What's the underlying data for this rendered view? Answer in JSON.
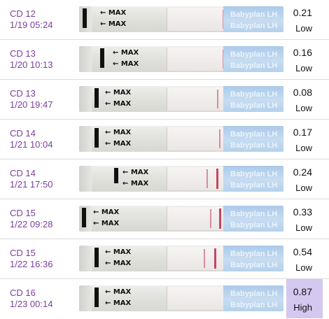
{
  "brand_text": "Babyplan LH",
  "max_label": "← MAX",
  "colors": {
    "day_text": "#7b3f9e",
    "high_highlight": "#d4c7f0",
    "control_line": "#c74660"
  },
  "entries": [
    {
      "cd": "CD 12",
      "datetime": "1/19 05:24",
      "value": "0.21",
      "level": "Low"
    },
    {
      "cd": "CD 13",
      "datetime": "1/20 10:13",
      "value": "0.16",
      "level": "Low"
    },
    {
      "cd": "CD 13",
      "datetime": "1/20 19:47",
      "value": "0.08",
      "level": "Low"
    },
    {
      "cd": "CD 14",
      "datetime": "1/21 10:04",
      "value": "0.17",
      "level": "Low"
    },
    {
      "cd": "CD 14",
      "datetime": "1/21 17:50",
      "value": "0.24",
      "level": "Low"
    },
    {
      "cd": "CD 15",
      "datetime": "1/22 09:28",
      "value": "0.33",
      "level": "Low"
    },
    {
      "cd": "CD 15",
      "datetime": "1/22 16:36",
      "value": "0.54",
      "level": "Low"
    },
    {
      "cd": "CD 16",
      "datetime": "1/23 00:14",
      "value": "0.87",
      "level": "High"
    }
  ]
}
